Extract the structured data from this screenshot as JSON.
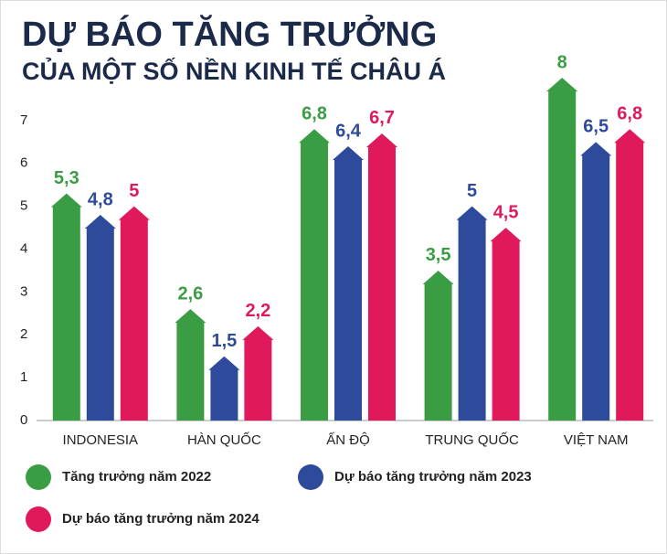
{
  "chart_data": {
    "type": "bar",
    "title": "DỰ BÁO TĂNG TRƯỞNG",
    "subtitle": "CỦA MỘT SỐ NỀN KINH TẾ CHÂU Á",
    "categories": [
      "INDONESIA",
      "HÀN QUỐC",
      "ẤN ĐỘ",
      "TRUNG QUỐC",
      "VIỆT NAM"
    ],
    "series": [
      {
        "name": "Tăng trưởng năm 2022",
        "color": "#3a9d43",
        "values": [
          5.3,
          2.6,
          6.8,
          3.5,
          8
        ],
        "value_labels": [
          "5,3",
          "2,6",
          "6,8",
          "3,5",
          "8"
        ]
      },
      {
        "name": "Dự báo tăng trưởng năm 2023",
        "color": "#2e4a9b",
        "values": [
          4.8,
          1.5,
          6.4,
          5,
          6.5
        ],
        "value_labels": [
          "4,8",
          "1,5",
          "6,4",
          "5",
          "6,5"
        ]
      },
      {
        "name": "Dự báo tăng trưởng năm 2024",
        "color": "#e0195a",
        "values": [
          5,
          2.2,
          6.7,
          4.5,
          6.8
        ],
        "value_labels": [
          "5",
          "2,2",
          "6,7",
          "4,5",
          "6,8"
        ]
      }
    ],
    "ylim": [
      0,
      8
    ],
    "yticks": [
      0,
      1,
      2,
      3,
      4,
      5,
      6,
      7
    ]
  }
}
